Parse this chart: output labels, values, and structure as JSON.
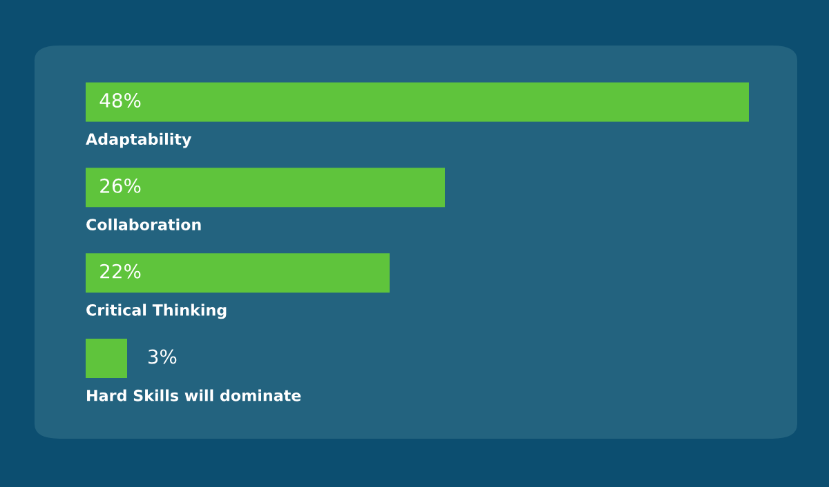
{
  "chart_data": {
    "type": "bar",
    "orientation": "horizontal",
    "categories": [
      "Adaptability",
      "Collaboration",
      "Critical Thinking",
      "Hard Skills will dominate"
    ],
    "values": [
      48,
      26,
      22,
      3
    ],
    "value_labels": [
      "48%",
      "26%",
      "22%",
      "3%"
    ],
    "color": "#5fc43c",
    "legend": false,
    "tick_labels": false
  }
}
